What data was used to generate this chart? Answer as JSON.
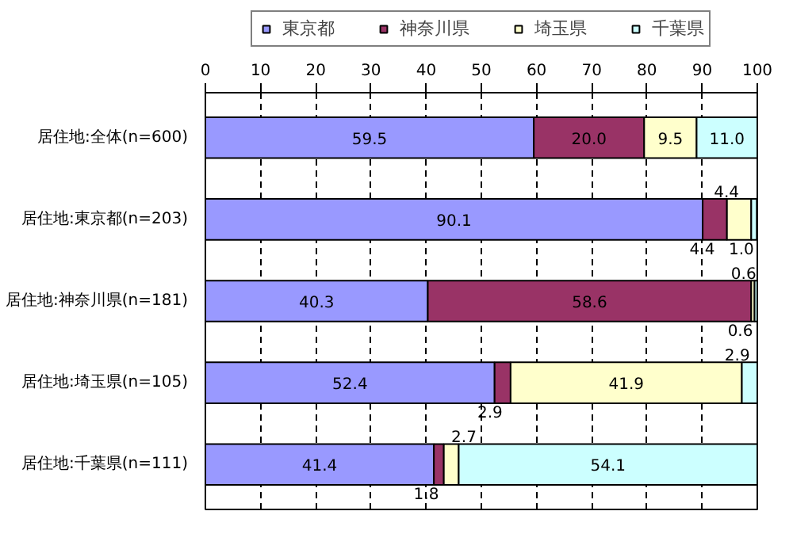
{
  "chart_data": {
    "type": "bar",
    "orientation": "horizontal",
    "stacked": true,
    "categories": [
      "居住地:全体(n=600)",
      "居住地:東京都(n=203)",
      "居住地:神奈川県(n=181)",
      "居住地:埼玉県(n=105)",
      "居住地:千葉県(n=111)"
    ],
    "series": [
      {
        "name": "東京都",
        "color": "#9999ff",
        "values": [
          59.5,
          90.1,
          40.3,
          52.4,
          41.4
        ],
        "value_labels": [
          "59.5",
          "90.1",
          "40.3",
          "52.4",
          "41.4"
        ]
      },
      {
        "name": "神奈川県",
        "color": "#993366",
        "values": [
          20.0,
          4.4,
          58.6,
          2.9,
          1.8
        ],
        "value_labels": [
          "20.0",
          "4.4",
          "58.6",
          "2.9",
          "1.8"
        ]
      },
      {
        "name": "埼玉県",
        "color": "#ffffcc",
        "values": [
          9.5,
          4.4,
          0.6,
          41.9,
          2.7
        ],
        "value_labels": [
          "9.5",
          "4.4",
          "0.6",
          "41.9",
          "2.7"
        ]
      },
      {
        "name": "千葉県",
        "color": "#ccffff",
        "values": [
          11.0,
          1.0,
          0.6,
          2.9,
          54.1
        ],
        "value_labels": [
          "11.0",
          "1.0",
          "0.6",
          "2.9",
          "54.1"
        ]
      }
    ],
    "xlim": [
      0,
      100
    ],
    "xticks": [
      0,
      10,
      20,
      30,
      40,
      50,
      60,
      70,
      80,
      90,
      100
    ],
    "grid": "x",
    "legend": "top"
  }
}
